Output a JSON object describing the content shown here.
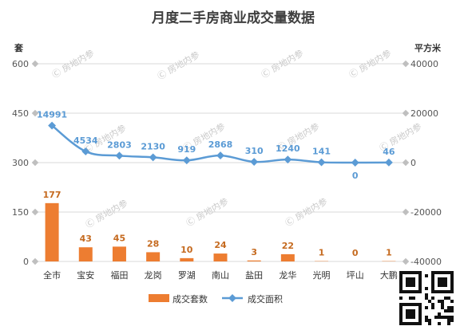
{
  "chart_data": {
    "type": "bar",
    "title": "月度二手房商业成交量数据",
    "ylabel_left": "套",
    "ylabel_right": "平方米",
    "categories": [
      "全市",
      "宝安",
      "福田",
      "龙岗",
      "罗湖",
      "南山",
      "盐田",
      "龙华",
      "光明",
      "坪山",
      "大鹏"
    ],
    "series": [
      {
        "name": "成交套数",
        "type": "bar",
        "axis": "left",
        "color": "#ed7d31",
        "values": [
          177,
          43,
          45,
          28,
          10,
          24,
          3,
          22,
          1,
          0,
          1
        ]
      },
      {
        "name": "成交面积",
        "type": "line",
        "axis": "right",
        "color": "#5b9bd5",
        "values": [
          14991,
          4534,
          2803,
          2130,
          919,
          2868,
          310,
          1240,
          141,
          0,
          46
        ]
      }
    ],
    "left_axis": {
      "ylim": [
        0,
        600
      ],
      "ticks": [
        0,
        150,
        300,
        450,
        600
      ]
    },
    "right_axis": {
      "ylim": [
        -40000,
        40000
      ],
      "ticks": [
        -40000,
        -20000,
        0,
        20000,
        40000
      ]
    },
    "grid": true,
    "legend_position": "bottom"
  },
  "watermark": "房地内参"
}
